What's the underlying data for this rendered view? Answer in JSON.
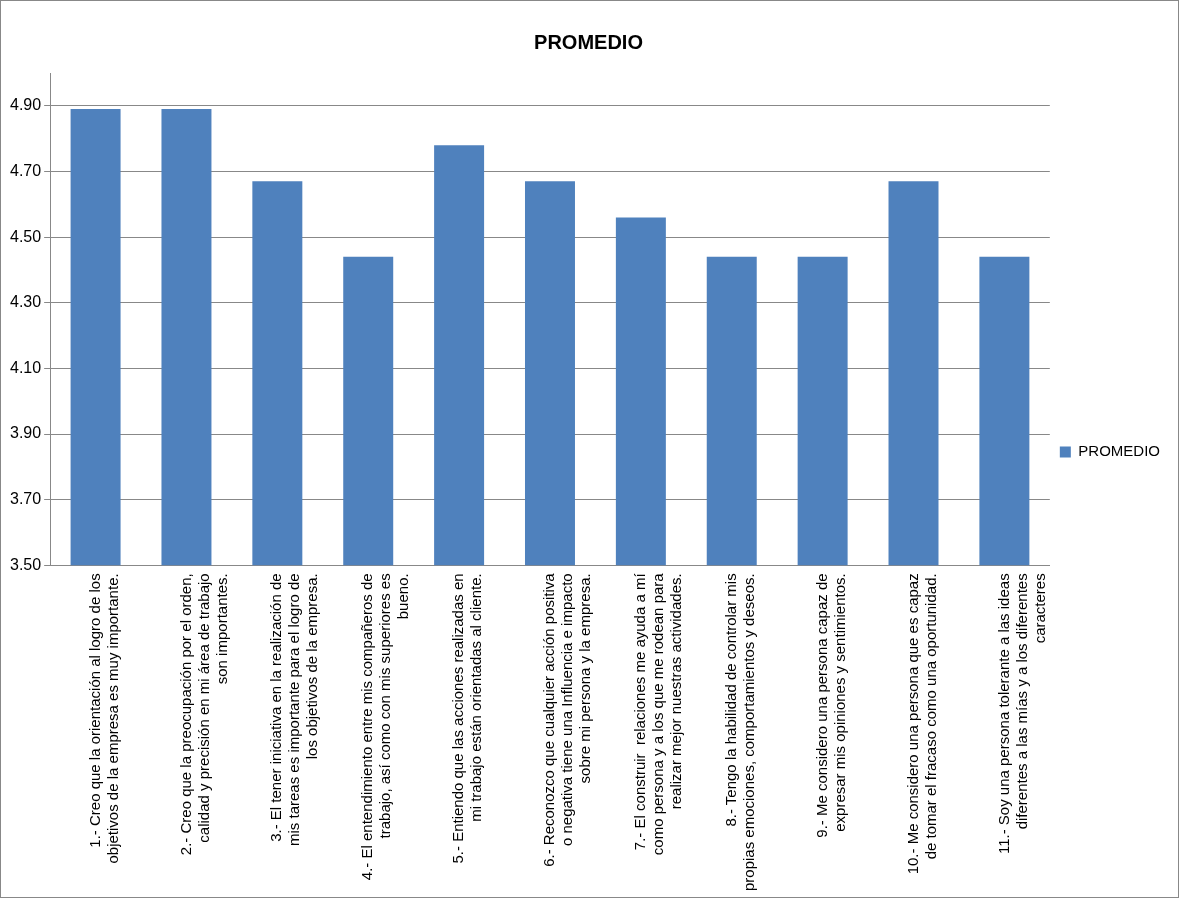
{
  "chart_data": {
    "type": "bar",
    "title": "PROMEDIO",
    "categories": [
      "1.- Creo que la orientación al logro de los objetivos de la empresa es muy importante.",
      "2.- Creo que la preocupación por el orden, calidad y precisión en mi área de trabajo son importantes.",
      "3.- El tener iniciativa en la realización de mis tareas es importante para el logro de los objetivos de la empresa.",
      "4.- El entendimiento entre mis compañeros de trabajo, así como con mis superiores es bueno.",
      "5.- Entiendo que las acciones realizadas en mi trabajo están orientadas al cliente.",
      "6.- Reconozco que cualquier acción positiva o negativa tiene una Influencia e impacto sobre mi persona y la empresa.",
      "7.- El construir  relaciones me ayuda a mí como persona y a los que me rodean para realizar mejor nuestras actividades.",
      "8.- Tengo la habilidad de controlar mis propias emociones, comportamientos y deseos.",
      "9.- Me considero una persona capaz de expresar mis opiniones y sentimientos.",
      "10.- Me considero una persona que es capaz de tomar el fracaso como una oportunidad.",
      "11.- Soy una persona tolerante a las ideas diferentes a las mías y a los diferentes caracteres"
    ],
    "series": [
      {
        "name": "PROMEDIO",
        "color": "#4f81bd",
        "values": [
          4.89,
          4.89,
          4.67,
          4.44,
          4.78,
          4.67,
          4.56,
          4.44,
          4.44,
          4.67,
          4.44
        ]
      }
    ],
    "ylim": [
      3.5,
      5.0
    ],
    "yticks": [
      {
        "value": 3.5,
        "label": "3.50"
      },
      {
        "value": 3.7,
        "label": "3.70"
      },
      {
        "value": 3.9,
        "label": "3.90"
      },
      {
        "value": 4.1,
        "label": "4.10"
      },
      {
        "value": 4.3,
        "label": "4.30"
      },
      {
        "value": 4.5,
        "label": "4.50"
      },
      {
        "value": 4.7,
        "label": "4.70"
      },
      {
        "value": 4.9,
        "label": "4.90"
      }
    ],
    "grid": "y",
    "legend": "right"
  }
}
